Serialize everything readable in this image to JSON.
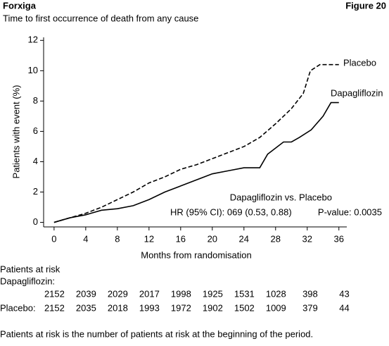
{
  "header": {
    "title": "Forxiga",
    "figure": "Figure 20",
    "subtitle": "Time to first occurrence of death from any cause"
  },
  "chart_data": {
    "type": "line",
    "x_label": "Months from randomisation",
    "y_label": "Patients with event (%)",
    "xlim": [
      -1.5,
      37
    ],
    "ylim": [
      -0.3,
      12.2
    ],
    "xticks": [
      0,
      4,
      8,
      12,
      16,
      20,
      24,
      28,
      32,
      36
    ],
    "yticks": [
      0,
      2,
      4,
      6,
      8,
      10,
      12
    ],
    "series": [
      {
        "name": "Placebo",
        "color": "#000000",
        "line_style": "dashed",
        "x": [
          0,
          2,
          4,
          6,
          8,
          10,
          12,
          14,
          16,
          18,
          20,
          22,
          24,
          26,
          28,
          30,
          31.5,
          32.4,
          33.6,
          36
        ],
        "values": [
          0,
          0.3,
          0.6,
          1.0,
          1.5,
          2.0,
          2.6,
          3.0,
          3.5,
          3.8,
          4.2,
          4.6,
          5.0,
          5.6,
          6.5,
          7.5,
          8.5,
          10.0,
          10.4,
          10.4
        ]
      },
      {
        "name": "Dapagliflozin",
        "color": "#000000",
        "line_style": "solid",
        "x": [
          0,
          2,
          4,
          6,
          8,
          10,
          12,
          14,
          16,
          18,
          20,
          22,
          24,
          26,
          27,
          29,
          30,
          31,
          32.5,
          34,
          35,
          36
        ],
        "values": [
          0,
          0.3,
          0.5,
          0.8,
          0.9,
          1.1,
          1.5,
          2.0,
          2.4,
          2.8,
          3.2,
          3.4,
          3.6,
          3.6,
          4.5,
          5.3,
          5.3,
          5.6,
          6.1,
          7.0,
          7.9,
          7.9
        ]
      }
    ],
    "annotations": [
      "Dapagliflozin vs. Placebo",
      "HR (95% CI): 069 (0.53, 0.88)",
      "P-value: 0.0035"
    ]
  },
  "risk_table": {
    "title": "Patients at risk",
    "rows": [
      {
        "label": "Dapagliflozin:",
        "values": [
          2152,
          2039,
          2029,
          2017,
          1998,
          1925,
          1531,
          1028,
          398,
          43
        ]
      },
      {
        "label": "Placebo:",
        "values": [
          2152,
          2035,
          2018,
          1993,
          1972,
          1902,
          1502,
          1009,
          379,
          44
        ]
      }
    ]
  },
  "footnote": "Patients at risk is the number of patients at risk at the beginning of the period."
}
